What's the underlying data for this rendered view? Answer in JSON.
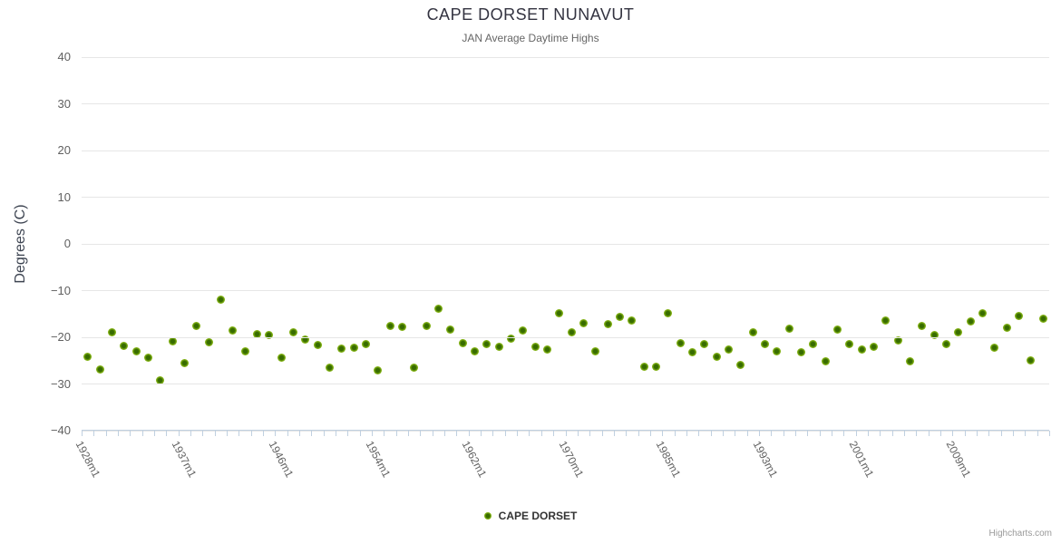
{
  "header": {
    "title": "CAPE DORSET NUNAVUT",
    "subtitle": "JAN Average Daytime Highs"
  },
  "legend": {
    "label": "CAPE DORSET"
  },
  "credits": {
    "label": "Highcharts.com"
  },
  "colors": {
    "marker_fill": "#8bbc21",
    "marker_center": "#376c00",
    "gridline": "#e6e6e6",
    "axis_line": "#c0d0e0",
    "axis_label": "#606060",
    "title": "#333340",
    "subtitle": "#666666",
    "legend_text": "#333333",
    "credits_text": "#999999"
  },
  "chart_data": {
    "type": "scatter",
    "title": "CAPE DORSET NUNAVUT",
    "subtitle": "JAN Average Daytime Highs",
    "xlabel": "",
    "ylabel": "Degrees (C)",
    "ylim": [
      -40,
      40
    ],
    "yticks": [
      40,
      30,
      20,
      10,
      0,
      -10,
      -20,
      -30,
      -40
    ],
    "grid": true,
    "legend_position": "bottom-center",
    "x_tick_labels": [
      "1928m1",
      "1937m1",
      "1946m1",
      "1954m1",
      "1962m1",
      "1970m1",
      "1985m1",
      "1993m1",
      "2001m1",
      "2009m1"
    ],
    "x_tick_label_indices": [
      0,
      8,
      16,
      24,
      32,
      40,
      48,
      56,
      64,
      72
    ],
    "categories": [
      "1928m1",
      "1929m1",
      "1930m1",
      "1931m1",
      "1932m1",
      "1933m1",
      "1934m1",
      "1935m1",
      "1937m1",
      "1938m1",
      "1939m1",
      "1940m1",
      "1941m1",
      "1942m1",
      "1943m1",
      "1944m1",
      "1946m1",
      "1947m1",
      "1948m1",
      "1949m1",
      "1950m1",
      "1951m1",
      "1952m1",
      "1953m1",
      "1954m1",
      "1955m1",
      "1956m1",
      "1957m1",
      "1958m1",
      "1959m1",
      "1960m1",
      "1961m1",
      "1962m1",
      "1963m1",
      "1964m1",
      "1965m1",
      "1966m1",
      "1967m1",
      "1968m1",
      "1969m1",
      "1970m1",
      "1971m1",
      "1972m1",
      "1973m1",
      "1974m1",
      "1975m1",
      "1976m1",
      "1984m1",
      "1985m1",
      "1986m1",
      "1987m1",
      "1988m1",
      "1989m1",
      "1990m1",
      "1991m1",
      "1992m1",
      "1993m1",
      "1994m1",
      "1995m1",
      "1996m1",
      "1997m1",
      "1998m1",
      "1999m1",
      "2000m1",
      "2001m1",
      "2002m1",
      "2003m1",
      "2004m1",
      "2005m1",
      "2006m1",
      "2007m1",
      "2008m1",
      "2009m1",
      "2010m1",
      "2011m1",
      "2012m1",
      "2013m1",
      "2014m1",
      "2015m1",
      "2016m1"
    ],
    "series": [
      {
        "name": "CAPE DORSET",
        "color": "#8bbc21",
        "values": [
          -24.1,
          -26.8,
          -18.9,
          -21.9,
          -23.1,
          -24.3,
          -29.2,
          -20.9,
          -25.5,
          -17.6,
          -21.0,
          -12.0,
          -18.6,
          -23.1,
          -19.4,
          -19.5,
          -24.3,
          -18.9,
          -20.5,
          -21.6,
          -26.6,
          -22.4,
          -22.3,
          -21.5,
          -27.1,
          -17.5,
          -17.8,
          -26.5,
          -17.5,
          -13.8,
          -18.4,
          -21.3,
          -23.1,
          -21.4,
          -22.1,
          -20.2,
          -18.6,
          -22.1,
          -22.7,
          -14.8,
          -19.0,
          -17.0,
          -23.0,
          -17.2,
          -15.6,
          -16.4,
          -26.4,
          -26.3,
          -14.9,
          -21.3,
          -23.3,
          -21.4,
          -24.2,
          -22.7,
          -26.0,
          -19.0,
          -21.5,
          -23.0,
          -18.2,
          -23.2,
          -21.5,
          -25.2,
          -18.4,
          -21.4,
          -22.6,
          -22.0,
          -16.5,
          -20.6,
          -25.2,
          -17.5,
          -19.6,
          -21.5,
          -19.0,
          -16.6,
          -14.8,
          -22.3,
          -17.9,
          -15.5,
          -25.0,
          -16.1
        ]
      }
    ]
  }
}
